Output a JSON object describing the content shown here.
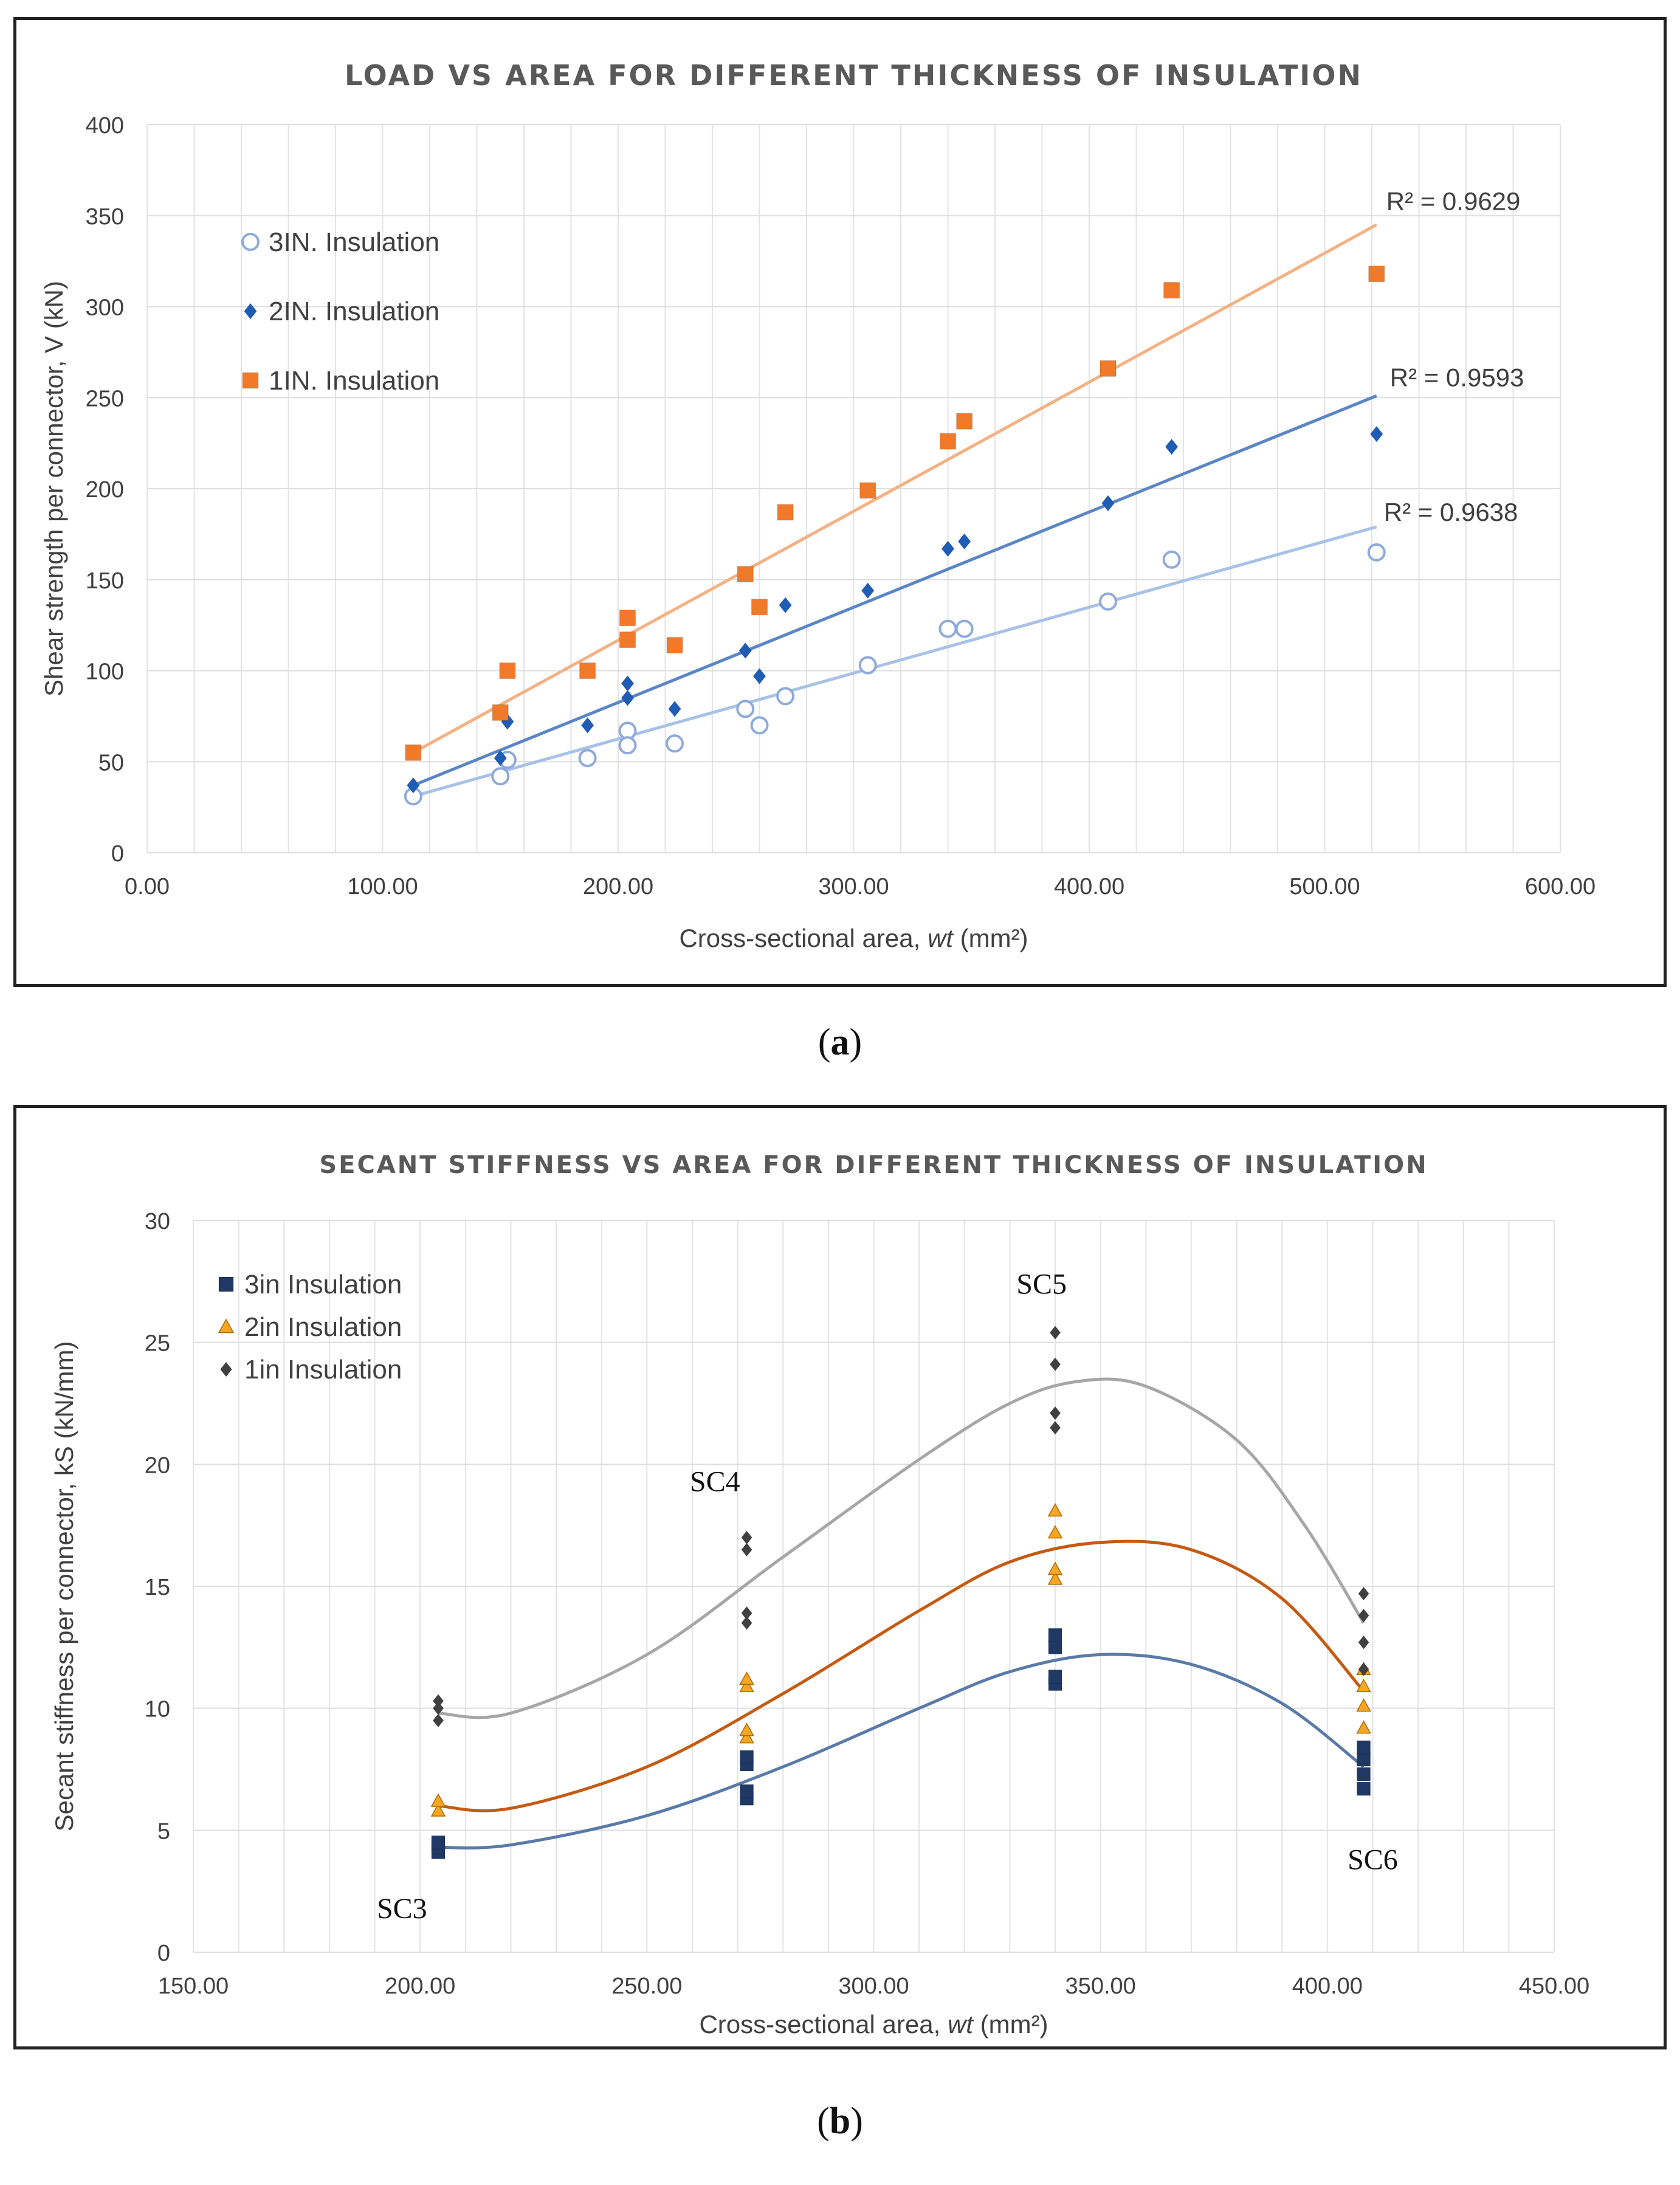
{
  "chart_data": [
    {
      "type": "scatter",
      "title": "LOAD VS AREA FOR DIFFERENT THICKNESS OF INSULATION",
      "xlabel_prefix": "Cross-sectional area, ",
      "xlabel_italic": "wt",
      "xlabel_suffix": " (mm²)",
      "ylabel": "Shear strength per connector, V (kN)",
      "xlim": [
        0,
        600
      ],
      "ylim": [
        0,
        400
      ],
      "xticks": [
        0,
        100,
        200,
        300,
        400,
        500,
        600
      ],
      "xtick_labels": [
        "0.00",
        "100.00",
        "200.00",
        "300.00",
        "400.00",
        "500.00",
        "600.00"
      ],
      "yticks": [
        0,
        50,
        100,
        150,
        200,
        250,
        300,
        350,
        400
      ],
      "ytick_labels": [
        "0",
        "50",
        "100",
        "150",
        "200",
        "250",
        "300",
        "350",
        "400"
      ],
      "grid": true,
      "legend_position": "top-left",
      "series": [
        {
          "name": "3IN. Insulation",
          "marker": "circle-open",
          "color": "#8eaadb",
          "trend_color": "#a9c1e6",
          "x": [
            113,
            150,
            153,
            187,
            204,
            204,
            224,
            254,
            260,
            271,
            306,
            340,
            347,
            408,
            435,
            522
          ],
          "y": [
            31,
            42,
            51,
            52,
            67,
            59,
            60,
            79,
            70,
            86,
            103,
            123,
            123,
            138,
            161,
            165
          ],
          "trend": {
            "x": [
              113,
              522
            ],
            "y": [
              31,
              179
            ]
          },
          "r2_label": "R² = 0.9638"
        },
        {
          "name": "2IN. Insulation",
          "marker": "diamond",
          "color": "#1f5cb4",
          "trend_color": "#5b86c5",
          "x": [
            113,
            150,
            153,
            187,
            204,
            204,
            224,
            254,
            260,
            271,
            306,
            340,
            347,
            408,
            435,
            522
          ],
          "y": [
            37,
            52,
            72,
            70,
            93,
            85,
            79,
            111,
            97,
            136,
            144,
            167,
            171,
            192,
            223,
            230
          ],
          "trend": {
            "x": [
              113,
              522
            ],
            "y": [
              37,
              251
            ]
          },
          "r2_label": "R² = 0.9593"
        },
        {
          "name": "1IN. Insulation",
          "marker": "square",
          "color": "#f07a2a",
          "trend_color": "#f4b183",
          "x": [
            113,
            150,
            153,
            187,
            204,
            204,
            224,
            254,
            260,
            271,
            306,
            340,
            347,
            408,
            435,
            522
          ],
          "y": [
            55,
            77,
            100,
            100,
            129,
            117,
            114,
            153,
            135,
            187,
            199,
            226,
            237,
            266,
            309,
            318
          ],
          "trend": {
            "x": [
              113,
              522
            ],
            "y": [
              55,
              345
            ]
          },
          "r2_label": "R² = 0.9629"
        }
      ],
      "caption": "a"
    },
    {
      "type": "scatter",
      "title": "SECANT STIFFNESS VS AREA FOR DIFFERENT THICKNESS OF INSULATION",
      "xlabel_prefix": "Cross-sectional area, ",
      "xlabel_italic": "wt",
      "xlabel_suffix": " (mm²)",
      "ylabel": "Secant stiffness per connector, kS (kN/mm)",
      "xlim": [
        150,
        450
      ],
      "ylim": [
        0,
        30
      ],
      "xticks": [
        150,
        200,
        250,
        300,
        350,
        400,
        450
      ],
      "xtick_labels": [
        "150.00",
        "200.00",
        "250.00",
        "300.00",
        "350.00",
        "400.00",
        "450.00"
      ],
      "yticks": [
        0,
        5,
        10,
        15,
        20,
        25,
        30
      ],
      "ytick_labels": [
        "0",
        "5",
        "10",
        "15",
        "20",
        "25",
        "30"
      ],
      "grid": true,
      "legend_position": "top-left",
      "series": [
        {
          "name": "3in Insulation",
          "marker": "square",
          "color": "#1f3864",
          "trend_color": "#5a7aa8",
          "x": [
            204,
            204,
            204,
            272,
            272,
            272,
            272,
            340,
            340,
            340,
            340,
            408,
            408,
            408,
            408
          ],
          "y": [
            4.1,
            4.3,
            4.5,
            6.3,
            6.6,
            7.7,
            8.0,
            11.0,
            11.3,
            12.5,
            13.0,
            6.7,
            7.3,
            7.9,
            8.4
          ],
          "trend": {
            "x": [
              204,
              220,
              250,
              280,
              310,
              330,
              350,
              370,
              390,
              408
            ],
            "y": [
              4.3,
              4.4,
              5.6,
              7.6,
              10.0,
              11.5,
              12.2,
              11.8,
              10.2,
              7.6
            ]
          },
          "r2_label": ""
        },
        {
          "name": "2in Insulation",
          "marker": "triangle",
          "color": "#f5a623",
          "trend_color": "#c55a11",
          "x": [
            204,
            204,
            272,
            272,
            272,
            272,
            340,
            340,
            340,
            340,
            408,
            408,
            408,
            408
          ],
          "y": [
            5.8,
            6.2,
            8.8,
            9.1,
            10.9,
            11.2,
            15.3,
            15.7,
            17.2,
            18.1,
            9.2,
            10.1,
            10.9,
            11.6
          ],
          "trend": {
            "x": [
              204,
              220,
              250,
              280,
              310,
              330,
              350,
              370,
              390,
              408
            ],
            "y": [
              6.0,
              5.9,
              7.6,
              10.6,
              14.0,
              16.0,
              16.8,
              16.5,
              14.5,
              10.7
            ]
          },
          "r2_label": ""
        },
        {
          "name": "1in Insulation",
          "marker": "diamond",
          "color": "#404040",
          "trend_color": "#a6a6a6",
          "x": [
            204,
            204,
            204,
            272,
            272,
            272,
            272,
            340,
            340,
            340,
            340,
            408,
            408,
            408,
            408
          ],
          "y": [
            9.5,
            10.0,
            10.3,
            13.5,
            13.9,
            16.5,
            17.0,
            21.5,
            22.1,
            24.1,
            25.4,
            11.6,
            12.7,
            13.8,
            14.7
          ],
          "trend": {
            "x": [
              204,
              220,
              250,
              280,
              310,
              330,
              345,
              360,
              380,
              395,
              408
            ],
            "y": [
              9.8,
              9.8,
              12.2,
              16.2,
              20.2,
              22.5,
              23.4,
              23.2,
              21.0,
              17.5,
              13.5
            ]
          },
          "r2_label": ""
        }
      ],
      "annotations": [
        {
          "text": "SC3",
          "x": 196,
          "y": 1.4
        },
        {
          "text": "SC4",
          "x": 265,
          "y": 18.9
        },
        {
          "text": "SC5",
          "x": 337,
          "y": 27.0
        },
        {
          "text": "SC6",
          "x": 410,
          "y": 3.4
        }
      ],
      "caption": "b"
    }
  ]
}
